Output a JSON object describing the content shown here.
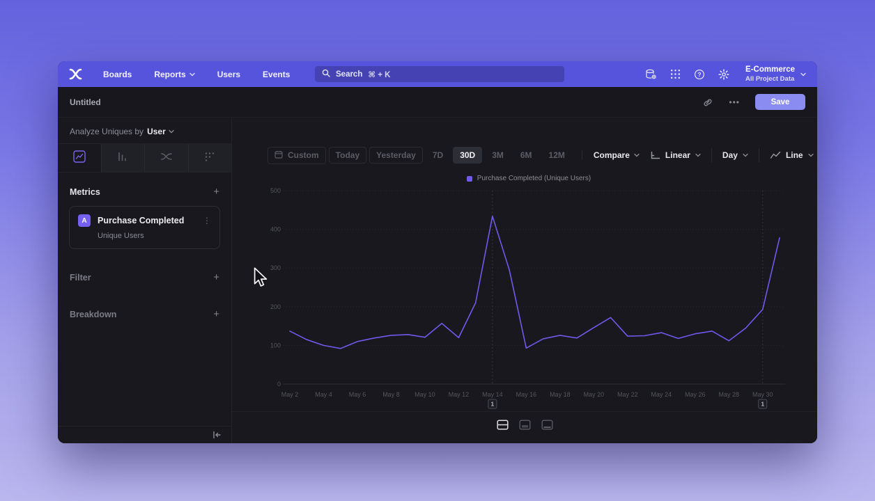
{
  "nav": {
    "items": [
      "Boards",
      "Reports",
      "Users",
      "Events"
    ],
    "search_placeholder": "Search",
    "search_shortcut": "⌘ + K",
    "project_name": "E-Commerce",
    "project_scope": "All Project Data"
  },
  "header": {
    "title": "Untitled",
    "menu_ellipsis": "•••",
    "save_label": "Save"
  },
  "sidebar": {
    "analyze_prefix": "Analyze Uniques by",
    "analyze_entity": "User",
    "metrics_label": "Metrics",
    "filter_label": "Filter",
    "breakdown_label": "Breakdown",
    "add_symbol": "+",
    "metric": {
      "badge": "A",
      "event": "Purchase Completed",
      "measure": "Unique Users",
      "menu": "⋮"
    }
  },
  "toolbar": {
    "ranges": [
      "Custom",
      "Today",
      "Yesterday",
      "7D",
      "30D",
      "3M",
      "6M",
      "12M"
    ],
    "selected_range": "30D",
    "compare": "Compare",
    "scale": "Linear",
    "interval": "Day",
    "chart_type": "Line"
  },
  "legend": {
    "label": "Purchase Completed (Unique Users)",
    "color": "#6f5aec"
  },
  "colors": {
    "accent": "#7a64f0",
    "nav": "#5654dc",
    "save_button": "#8a8cf1",
    "line": "#6f5aec"
  },
  "chart_data": {
    "type": "line",
    "title": "",
    "xlabel": "",
    "ylabel": "",
    "categories": [
      "May 2",
      "May 3",
      "May 4",
      "May 5",
      "May 6",
      "May 7",
      "May 8",
      "May 9",
      "May 10",
      "May 11",
      "May 12",
      "May 13",
      "May 14",
      "May 15",
      "May 16",
      "May 17",
      "May 18",
      "May 19",
      "May 20",
      "May 21",
      "May 22",
      "May 23",
      "May 24",
      "May 25",
      "May 26",
      "May 27",
      "May 28",
      "May 29",
      "May 30",
      "May 31"
    ],
    "series": [
      {
        "name": "Purchase Completed (Unique Users)",
        "color": "#6f5aec",
        "values": [
          137,
          115,
          100,
          92,
          110,
          119,
          126,
          128,
          121,
          157,
          120,
          210,
          434,
          295,
          93,
          117,
          126,
          119,
          146,
          172,
          124,
          125,
          133,
          118,
          130,
          137,
          112,
          145,
          193,
          378
        ]
      }
    ],
    "ylim": [
      0,
      500
    ],
    "y_ticks": [
      0,
      100,
      200,
      300,
      400,
      500
    ],
    "x_tick_every": 2,
    "grid": "horizontal-dotted",
    "legend_position": "top-center",
    "annotations": [
      {
        "index": 12,
        "label": "1"
      },
      {
        "index": 28,
        "label": "1"
      }
    ]
  }
}
